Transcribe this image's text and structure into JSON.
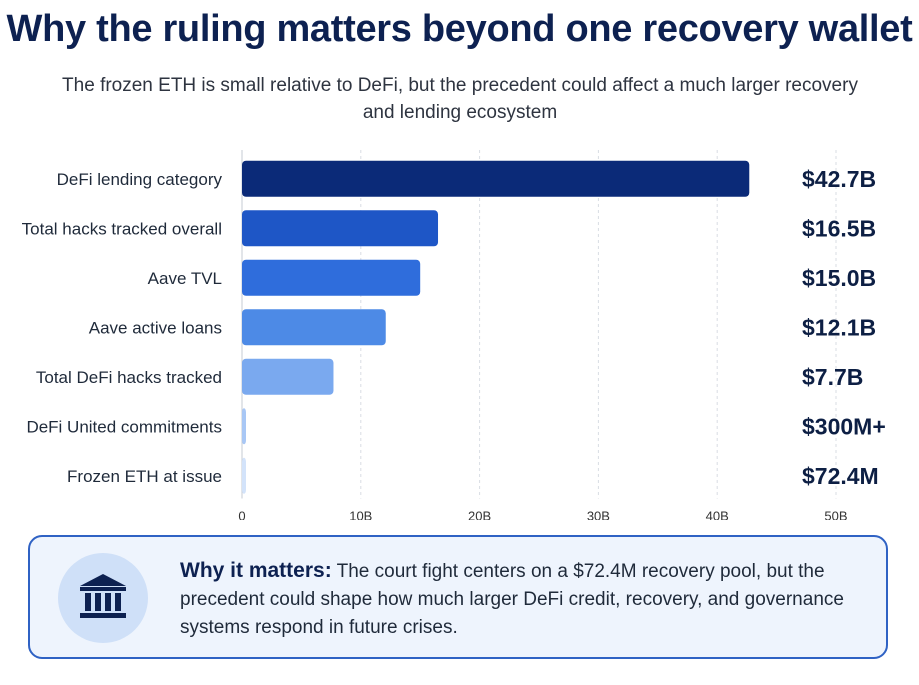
{
  "header": {
    "title": "Why the ruling matters beyond one recovery wallet",
    "subtitle": "The frozen ETH is small relative to DeFi, but the precedent could affect a much larger recovery and lending ecosystem"
  },
  "chart_data": {
    "type": "bar",
    "orientation": "horizontal",
    "categories": [
      "DeFi lending category",
      "Total hacks tracked overall",
      "Aave TVL",
      "Aave active loans",
      "Total DeFi hacks tracked",
      "DeFi United commitments",
      "Frozen ETH at issue"
    ],
    "values": [
      42.7,
      16.5,
      15.0,
      12.1,
      7.7,
      0.3,
      0.0724
    ],
    "value_labels": [
      "$42.7B",
      "$16.5B",
      "$15.0B",
      "$12.1B",
      "$7.7B",
      "$300M+",
      "$72.4M"
    ],
    "colors": [
      "#0b2a78",
      "#1e56c6",
      "#2f6ddc",
      "#4d8ae6",
      "#7aa9ef",
      "#a8c7f5",
      "#d3e3fa"
    ],
    "xticks": [
      "0",
      "10B",
      "20B",
      "30B",
      "40B",
      "50B"
    ],
    "xlim": [
      0,
      50
    ],
    "grid": true
  },
  "callout": {
    "icon": "bank-icon",
    "heading": "Why it matters:",
    "body": "The court fight centers on a $72.4M recovery pool, but the precedent could shape how much larger DeFi credit, recovery, and governance systems respond in future crises."
  }
}
